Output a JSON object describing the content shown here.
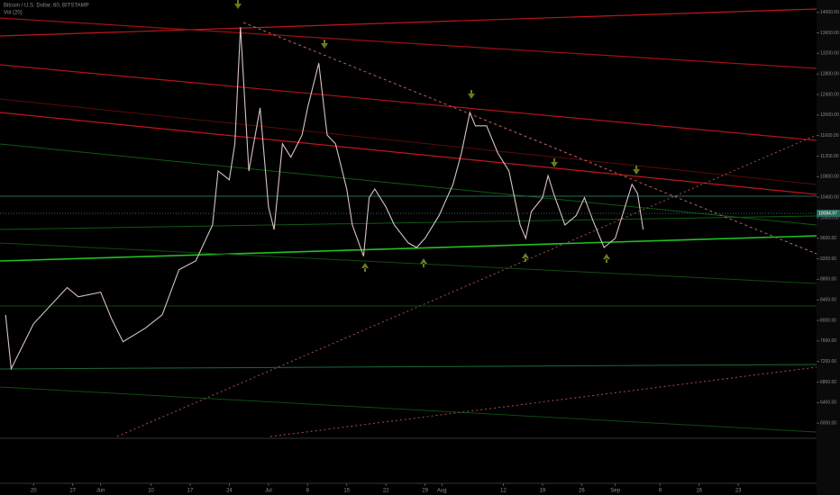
{
  "chart_data": {
    "type": "line",
    "title": "Bitcoin / U.S. Dollar, 60, BITSTAMP",
    "subtitle": "Vol (20)",
    "x": [
      1,
      2,
      6,
      12,
      14,
      18,
      20,
      22,
      26,
      29,
      32,
      35,
      38,
      39,
      41,
      42,
      43,
      44.5,
      46.5,
      48,
      49,
      50.5,
      52,
      54,
      55,
      57,
      58.5,
      60,
      62,
      63,
      65,
      66,
      67,
      69,
      70.5,
      73,
      74.5,
      76,
      78.5,
      81,
      82.5,
      84,
      85,
      87,
      89,
      91,
      93,
      94,
      95,
      97,
      98,
      99,
      101,
      103,
      104.5,
      106,
      108,
      110,
      111,
      113,
      114,
      115
    ],
    "values": [
      8110,
      7060,
      7935,
      8640,
      8460,
      8550,
      8020,
      7585,
      7850,
      8110,
      8990,
      9160,
      9860,
      10910,
      10740,
      11440,
      13710,
      10910,
      12140,
      10210,
      9770,
      11440,
      11180,
      11610,
      12140,
      13010,
      11610,
      11440,
      10560,
      9860,
      9250,
      10390,
      10560,
      10210,
      9860,
      9510,
      9420,
      9600,
      10040,
      10650,
      11260,
      12050,
      11790,
      11790,
      11260,
      10910,
      9860,
      9600,
      10120,
      10390,
      10820,
      10470,
      9860,
      10040,
      10390,
      9950,
      9420,
      9600,
      9950,
      10650,
      10470,
      9770
    ],
    "color": "#d8c2c2",
    "last_price": 10084.97,
    "xlim": [
      0,
      146
    ],
    "xticks": [
      {
        "value": 6,
        "label": "20"
      },
      {
        "value": 13,
        "label": "27"
      },
      {
        "value": 18,
        "label": "Jun"
      },
      {
        "value": 27,
        "label": "10"
      },
      {
        "value": 34,
        "label": "17"
      },
      {
        "value": 41,
        "label": "24"
      },
      {
        "value": 48,
        "label": "Jul"
      },
      {
        "value": 55,
        "label": "8"
      },
      {
        "value": 62,
        "label": "15"
      },
      {
        "value": 69,
        "label": "22"
      },
      {
        "value": 76,
        "label": "29"
      },
      {
        "value": 79,
        "label": "Aug"
      },
      {
        "value": 90,
        "label": "12"
      },
      {
        "value": 97,
        "label": "19"
      },
      {
        "value": 104,
        "label": "26"
      },
      {
        "value": 110,
        "label": "Sep"
      },
      {
        "value": 118,
        "label": "9"
      },
      {
        "value": 125,
        "label": "16"
      },
      {
        "value": 132,
        "label": "23"
      }
    ],
    "ylim": [
      5740,
      14240
    ],
    "yticks": [
      {
        "value": 6000,
        "label": "6000.00"
      },
      {
        "value": 6400,
        "label": "6400.00"
      },
      {
        "value": 6800,
        "label": "6800.00"
      },
      {
        "value": 7200,
        "label": "7200.00"
      },
      {
        "value": 7600,
        "label": "7600.00"
      },
      {
        "value": 8000,
        "label": "8000.00"
      },
      {
        "value": 8400,
        "label": "8400.00"
      },
      {
        "value": 8800,
        "label": "8800.00"
      },
      {
        "value": 9200,
        "label": "9200.00"
      },
      {
        "value": 9600,
        "label": "9600.00"
      },
      {
        "value": 10000,
        "label": "10000.00"
      },
      {
        "value": 10400,
        "label": "10400.00"
      },
      {
        "value": 10800,
        "label": "10800.00"
      },
      {
        "value": 11200,
        "label": "11200.00"
      },
      {
        "value": 11600,
        "label": "11600.00"
      },
      {
        "value": 12000,
        "label": "12000.00"
      },
      {
        "value": 12400,
        "label": "12400.00"
      },
      {
        "value": 12800,
        "label": "12800.00"
      },
      {
        "value": 13200,
        "label": "13200.00"
      },
      {
        "value": 13600,
        "label": "13600.00"
      },
      {
        "value": 14000,
        "label": "14000.00"
      }
    ]
  }
}
